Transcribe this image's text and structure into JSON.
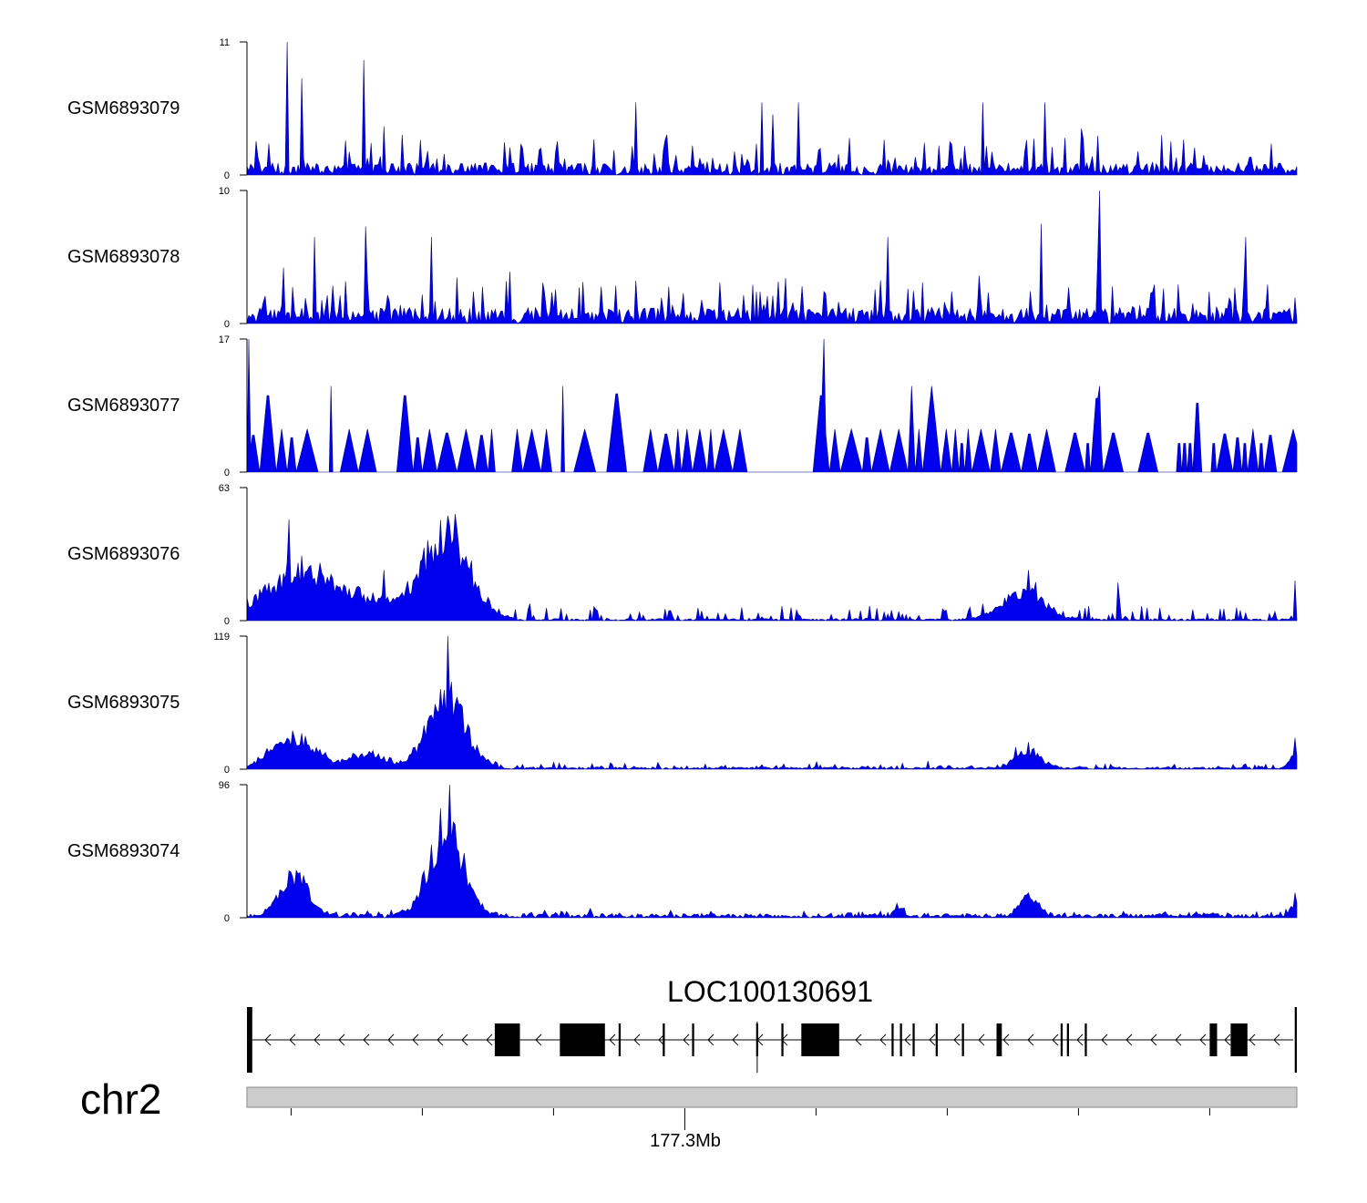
{
  "chart_data": {
    "type": "area",
    "title": "",
    "colors": {
      "signal": "#0000ee",
      "signal_stroke": "#00008b",
      "axis": "#000000",
      "ideogram": "#cccccc",
      "exon": "#000000"
    },
    "tracks": [
      {
        "name": "GSM6893079",
        "ylim": [
          0,
          11
        ],
        "ymax_label": "11",
        "ymin_label": "0",
        "baseline": 1.0,
        "noise": 2.5,
        "spikes": [
          [
            0.038,
            11
          ],
          [
            0.053,
            8
          ],
          [
            0.111,
            9.5
          ],
          [
            0.37,
            6
          ],
          [
            0.49,
            6
          ],
          [
            0.5,
            5
          ],
          [
            0.525,
            6
          ],
          [
            0.7,
            6
          ],
          [
            0.76,
            6
          ]
        ],
        "peaks": []
      },
      {
        "name": "GSM6893078",
        "ylim": [
          0,
          10
        ],
        "ymax_label": "10",
        "ymin_label": "0",
        "baseline": 1.2,
        "noise": 3.0,
        "spikes": [
          [
            0.065,
            6.5
          ],
          [
            0.176,
            6.5
          ],
          [
            0.61,
            6.5
          ],
          [
            0.756,
            7.5
          ],
          [
            0.812,
            10
          ],
          [
            0.952,
            6.5
          ]
        ],
        "peaks": []
      },
      {
        "name": "GSM6893077",
        "ylim": [
          0,
          17
        ],
        "ymax_label": "17",
        "ymin_label": "0",
        "baseline": 0,
        "noise": 0,
        "sparse": true,
        "spikes": [
          [
            0.001,
            17
          ],
          [
            0.549,
            17
          ],
          [
            0.3,
            11
          ],
          [
            0.08,
            11
          ],
          [
            0.812,
            11
          ]
        ],
        "peaks": []
      },
      {
        "name": "GSM6893076",
        "ylim": [
          0,
          63
        ],
        "ymax_label": "63",
        "ymin_label": "0",
        "baseline": 1.0,
        "noise": 6,
        "spikes": [
          [
            0.04,
            48
          ],
          [
            0.13,
            24
          ],
          [
            0.745,
            24
          ],
          [
            0.83,
            18
          ],
          [
            0.999,
            19
          ]
        ],
        "peaks": [
          [
            0.04,
            0.03,
            22
          ],
          [
            0.07,
            0.02,
            10
          ],
          [
            0.12,
            0.025,
            12
          ],
          [
            0.19,
            0.022,
            52
          ],
          [
            0.74,
            0.02,
            16
          ]
        ]
      },
      {
        "name": "GSM6893075",
        "ylim": [
          0,
          119
        ],
        "ymax_label": "119",
        "ymin_label": "0",
        "baseline": 2,
        "noise": 4,
        "spikes": [
          [
            0.192,
            119
          ],
          [
            0.998,
            28
          ]
        ],
        "peaks": [
          [
            0.045,
            0.02,
            35
          ],
          [
            0.12,
            0.012,
            15
          ],
          [
            0.19,
            0.018,
            80
          ],
          [
            0.1,
            0.01,
            8
          ],
          [
            0.744,
            0.012,
            20
          ],
          [
            0.998,
            0.005,
            15
          ]
        ]
      },
      {
        "name": "GSM6893074",
        "ylim": [
          0,
          96
        ],
        "ymax_label": "96",
        "ymin_label": "0",
        "baseline": 3,
        "noise": 3,
        "spikes": [
          [
            0.193,
            96
          ],
          [
            0.998,
            18
          ]
        ],
        "peaks": [
          [
            0.045,
            0.013,
            38
          ],
          [
            0.19,
            0.016,
            80
          ],
          [
            0.745,
            0.008,
            20
          ],
          [
            0.62,
            0.004,
            8
          ],
          [
            0.998,
            0.004,
            10
          ]
        ]
      }
    ],
    "gene": {
      "name": "LOC100130691",
      "strand": "-",
      "exons": [
        [
          0.0,
          0.005
        ],
        [
          0.236,
          0.26
        ],
        [
          0.298,
          0.341
        ],
        [
          0.354,
          0.356
        ],
        [
          0.396,
          0.398
        ],
        [
          0.424,
          0.426
        ],
        [
          0.485,
          0.487
        ],
        [
          0.509,
          0.511
        ],
        [
          0.528,
          0.564
        ],
        [
          0.614,
          0.616
        ],
        [
          0.622,
          0.624
        ],
        [
          0.634,
          0.636
        ],
        [
          0.656,
          0.658
        ],
        [
          0.681,
          0.683
        ],
        [
          0.714,
          0.719
        ],
        [
          0.775,
          0.777
        ],
        [
          0.781,
          0.783
        ],
        [
          0.798,
          0.8
        ],
        [
          0.917,
          0.924
        ],
        [
          0.937,
          0.953
        ],
        [
          0.998,
          1.0
        ]
      ]
    },
    "chromosome": {
      "name": "chr2",
      "tick_label": "177.3Mb",
      "tick_fractions": [
        0.042,
        0.167,
        0.292,
        0.417,
        0.542,
        0.667,
        0.792,
        0.917
      ],
      "labeled_tick_index": 3
    }
  }
}
